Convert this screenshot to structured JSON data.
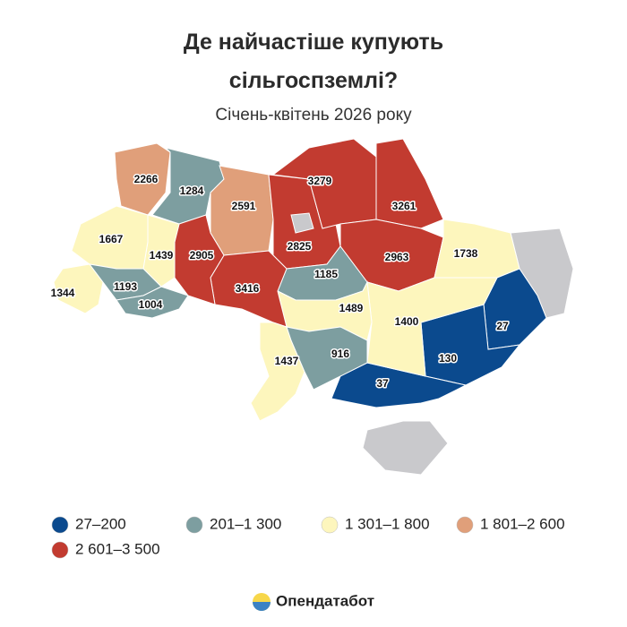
{
  "header": {
    "title": [
      "Де найчастіше купують",
      "сільгоспземлі?"
    ],
    "subtitle": "Січень-квітень 2026 року"
  },
  "legend": [
    {
      "label": "27–200",
      "min": 27,
      "max": 200,
      "color": "#0b4a8e"
    },
    {
      "label": "201–1 300",
      "min": 201,
      "max": 1300,
      "color": "#7d9ea0"
    },
    {
      "label": "1 301–1 800",
      "min": 1301,
      "max": 1800,
      "color": "#fdf6bd"
    },
    {
      "label": "1 801–2 600",
      "min": 1801,
      "max": 2600,
      "color": "#e09f7a"
    },
    {
      "label": "2 601–3 500",
      "min": 2601,
      "max": 3500,
      "color": "#c23b30"
    }
  ],
  "regions": [
    2266,
    1284,
    2591,
    2825,
    3279,
    3261,
    2963,
    1738,
    27,
    130,
    37,
    1400,
    1185,
    1489,
    3416,
    2905,
    1439,
    1667,
    1344,
    1193,
    1004,
    1437,
    916
  ],
  "footer": {
    "brand": "Опендатабот"
  }
}
